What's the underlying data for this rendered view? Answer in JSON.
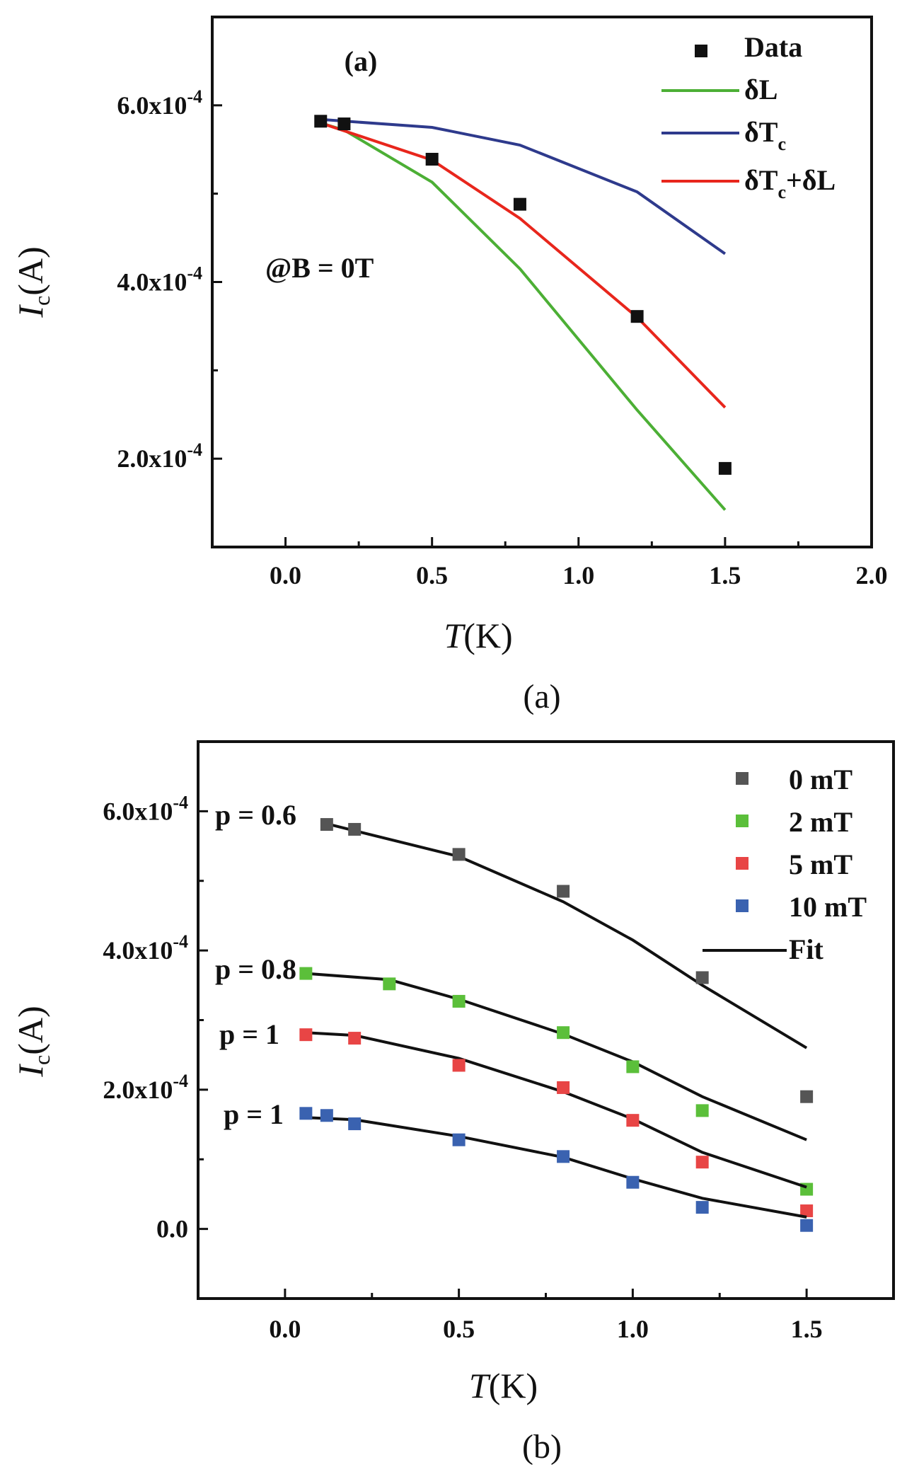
{
  "chart_data": [
    {
      "type": "line",
      "panel_label": "(a)",
      "caption": "(a)",
      "annotation": "@B = 0T",
      "xlabel": {
        "italic": "T",
        "rest": "(K)"
      },
      "ylabel": {
        "italic": "I",
        "sub": "c",
        "rest": "(A)"
      },
      "xlim": [
        -0.25,
        2.0
      ],
      "ylim": [
        1.0,
        7.0
      ],
      "y_unit": "1e-4 A",
      "x_ticks": [
        0.0,
        0.5,
        1.0,
        1.5,
        2.0
      ],
      "x_tick_labels": [
        "0.0",
        "0.5",
        "1.0",
        "1.5",
        "2.0"
      ],
      "y_ticks": [
        2.0,
        4.0,
        6.0
      ],
      "y_tick_labels": [
        "2.0x10",
        "4.0x10",
        "6.0x10"
      ],
      "y_tick_exp": "-4",
      "legend_position": "top-right",
      "series": [
        {
          "name": "Data",
          "kind": "scatter",
          "color": "#111111",
          "x": [
            0.12,
            0.2,
            0.5,
            0.8,
            1.2,
            1.5
          ],
          "y": [
            5.82,
            5.79,
            5.39,
            4.88,
            3.61,
            1.89
          ]
        },
        {
          "name": "δL",
          "kind": "line",
          "color": "#4caf35",
          "x": [
            0.12,
            0.2,
            0.5,
            0.8,
            1.2,
            1.5
          ],
          "y": [
            5.8,
            5.72,
            5.13,
            4.15,
            2.55,
            1.42
          ]
        },
        {
          "name": "δT",
          "sub": "c",
          "kind": "line",
          "color": "#2e3a8c",
          "x": [
            0.12,
            0.5,
            0.8,
            1.2,
            1.5
          ],
          "y": [
            5.84,
            5.75,
            5.55,
            5.02,
            4.32
          ]
        },
        {
          "name": "δT",
          "sub": "c",
          "suffix": "+δL",
          "kind": "line",
          "color": "#e8261c",
          "x": [
            0.12,
            0.5,
            0.8,
            1.2,
            1.5
          ],
          "y": [
            5.8,
            5.38,
            4.72,
            3.6,
            2.58
          ]
        }
      ]
    },
    {
      "type": "scatter",
      "caption": "(b)",
      "xlabel": {
        "italic": "T",
        "rest": "(K)"
      },
      "ylabel": {
        "italic": "I",
        "sub": "c",
        "rest": "(A)"
      },
      "xlim": [
        -0.25,
        1.75
      ],
      "ylim": [
        -1.0,
        7.0
      ],
      "y_unit": "1e-4 A",
      "x_ticks": [
        0.0,
        0.5,
        1.0,
        1.5
      ],
      "x_tick_labels": [
        "0.0",
        "0.5",
        "1.0",
        "1.5"
      ],
      "y_ticks": [
        0.0,
        2.0,
        4.0,
        6.0
      ],
      "y_tick_labels": [
        "0.0",
        "2.0x10",
        "4.0x10",
        "6.0x10"
      ],
      "y_tick_exp": "-4",
      "legend_position": "top-right",
      "fit_label": "Fit",
      "annotations": [
        {
          "text": "p = 0.6",
          "series": "0 mT"
        },
        {
          "text": "p = 0.8",
          "series": "2 mT"
        },
        {
          "text": "p = 1",
          "series": "5 mT"
        },
        {
          "text": "p = 1",
          "series": "10 mT"
        }
      ],
      "series": [
        {
          "name": "0 mT",
          "color": "#555555",
          "x": [
            0.12,
            0.2,
            0.5,
            0.8,
            1.2,
            1.5
          ],
          "y": [
            5.81,
            5.74,
            5.38,
            4.85,
            3.61,
            1.9
          ],
          "fit_x": [
            0.12,
            0.5,
            0.8,
            1.0,
            1.2,
            1.5
          ],
          "fit_y": [
            5.82,
            5.35,
            4.7,
            4.15,
            3.5,
            2.6
          ]
        },
        {
          "name": "2 mT",
          "color": "#5bbf3a",
          "x": [
            0.06,
            0.3,
            0.5,
            0.8,
            1.0,
            1.2,
            1.5
          ],
          "y": [
            3.67,
            3.52,
            3.27,
            2.82,
            2.33,
            1.7,
            0.57
          ],
          "fit_x": [
            0.06,
            0.3,
            0.5,
            0.8,
            1.0,
            1.2,
            1.5
          ],
          "fit_y": [
            3.67,
            3.58,
            3.3,
            2.8,
            2.4,
            1.9,
            1.28
          ]
        },
        {
          "name": "5 mT",
          "color": "#e84545",
          "x": [
            0.06,
            0.2,
            0.5,
            0.8,
            1.0,
            1.2,
            1.5
          ],
          "y": [
            2.79,
            2.74,
            2.35,
            2.03,
            1.56,
            0.96,
            0.26
          ],
          "fit_x": [
            0.06,
            0.2,
            0.5,
            0.8,
            1.0,
            1.2,
            1.5
          ],
          "fit_y": [
            2.82,
            2.78,
            2.45,
            1.97,
            1.58,
            1.1,
            0.6
          ]
        },
        {
          "name": "10 mT",
          "color": "#3a62b0",
          "x": [
            0.06,
            0.12,
            0.2,
            0.5,
            0.8,
            1.0,
            1.2,
            1.5
          ],
          "y": [
            1.66,
            1.63,
            1.51,
            1.28,
            1.04,
            0.67,
            0.31,
            0.05
          ],
          "fit_x": [
            0.06,
            0.2,
            0.5,
            0.8,
            1.0,
            1.2,
            1.5
          ],
          "fit_y": [
            1.6,
            1.57,
            1.33,
            1.03,
            0.72,
            0.44,
            0.17
          ]
        }
      ]
    }
  ]
}
